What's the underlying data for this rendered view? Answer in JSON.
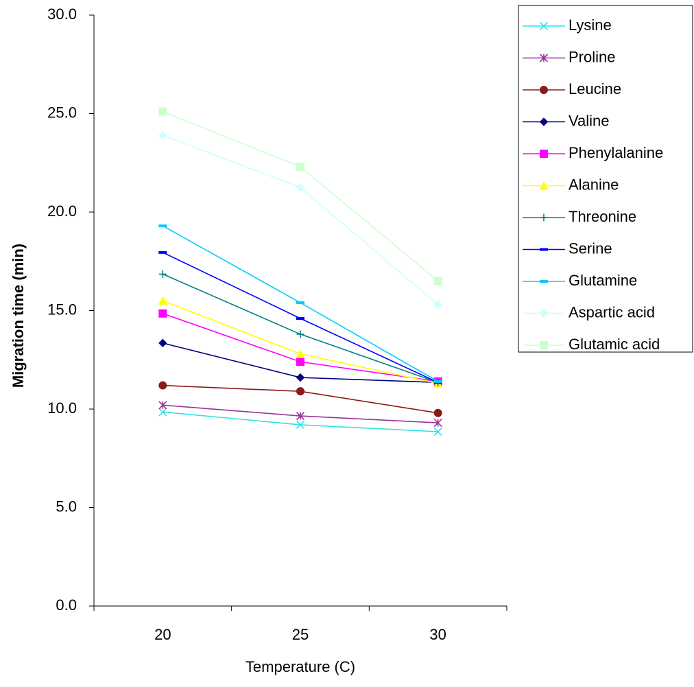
{
  "chart_data": {
    "type": "line",
    "x_label": "Temperature (C)",
    "y_label": "Migration time (min)",
    "categories": [
      "20",
      "25",
      "30"
    ],
    "ylim": [
      0,
      30
    ],
    "yticks": [
      {
        "value": 0,
        "label": "0.0"
      },
      {
        "value": 5,
        "label": "5.0"
      },
      {
        "value": 10,
        "label": "10.0"
      },
      {
        "value": 15,
        "label": "15.0"
      },
      {
        "value": 20,
        "label": "20.0"
      },
      {
        "value": 25,
        "label": "25.0"
      },
      {
        "value": 30,
        "label": "30.0"
      }
    ],
    "legend": "right",
    "series": [
      {
        "name": "Lysine",
        "color": "#33e0e8",
        "marker": "x",
        "values": [
          9.85,
          9.2,
          8.85
        ]
      },
      {
        "name": "Proline",
        "color": "#993399",
        "marker": "star",
        "values": [
          10.2,
          9.65,
          9.3
        ]
      },
      {
        "name": "Leucine",
        "color": "#8b1a1a",
        "marker": "circle",
        "values": [
          11.2,
          10.9,
          9.8
        ]
      },
      {
        "name": "Valine",
        "color": "#000080",
        "marker": "diamond",
        "values": [
          13.35,
          11.6,
          11.35
        ]
      },
      {
        "name": "Phenylalanine",
        "color": "#ff00ff",
        "marker": "square",
        "values": [
          14.85,
          12.4,
          11.4
        ]
      },
      {
        "name": "Alanine",
        "color": "#ffff00",
        "marker": "triangle",
        "values": [
          15.5,
          12.8,
          11.3
        ]
      },
      {
        "name": "Threonine",
        "color": "#008080",
        "marker": "plus",
        "values": [
          16.85,
          13.8,
          11.35
        ]
      },
      {
        "name": "Serine",
        "color": "#0000ff",
        "marker": "dash",
        "values": [
          17.95,
          14.6,
          11.35
        ]
      },
      {
        "name": "Glutamine",
        "color": "#00ccff",
        "marker": "dash",
        "values": [
          19.3,
          15.4,
          11.4
        ]
      },
      {
        "name": "Aspartic acid",
        "color": "#ccffff",
        "marker": "diamond",
        "values": [
          23.9,
          21.25,
          15.3
        ]
      },
      {
        "name": "Glutamic acid",
        "color": "#ccffcc",
        "marker": "square",
        "values": [
          25.1,
          22.3,
          16.5
        ]
      }
    ]
  }
}
